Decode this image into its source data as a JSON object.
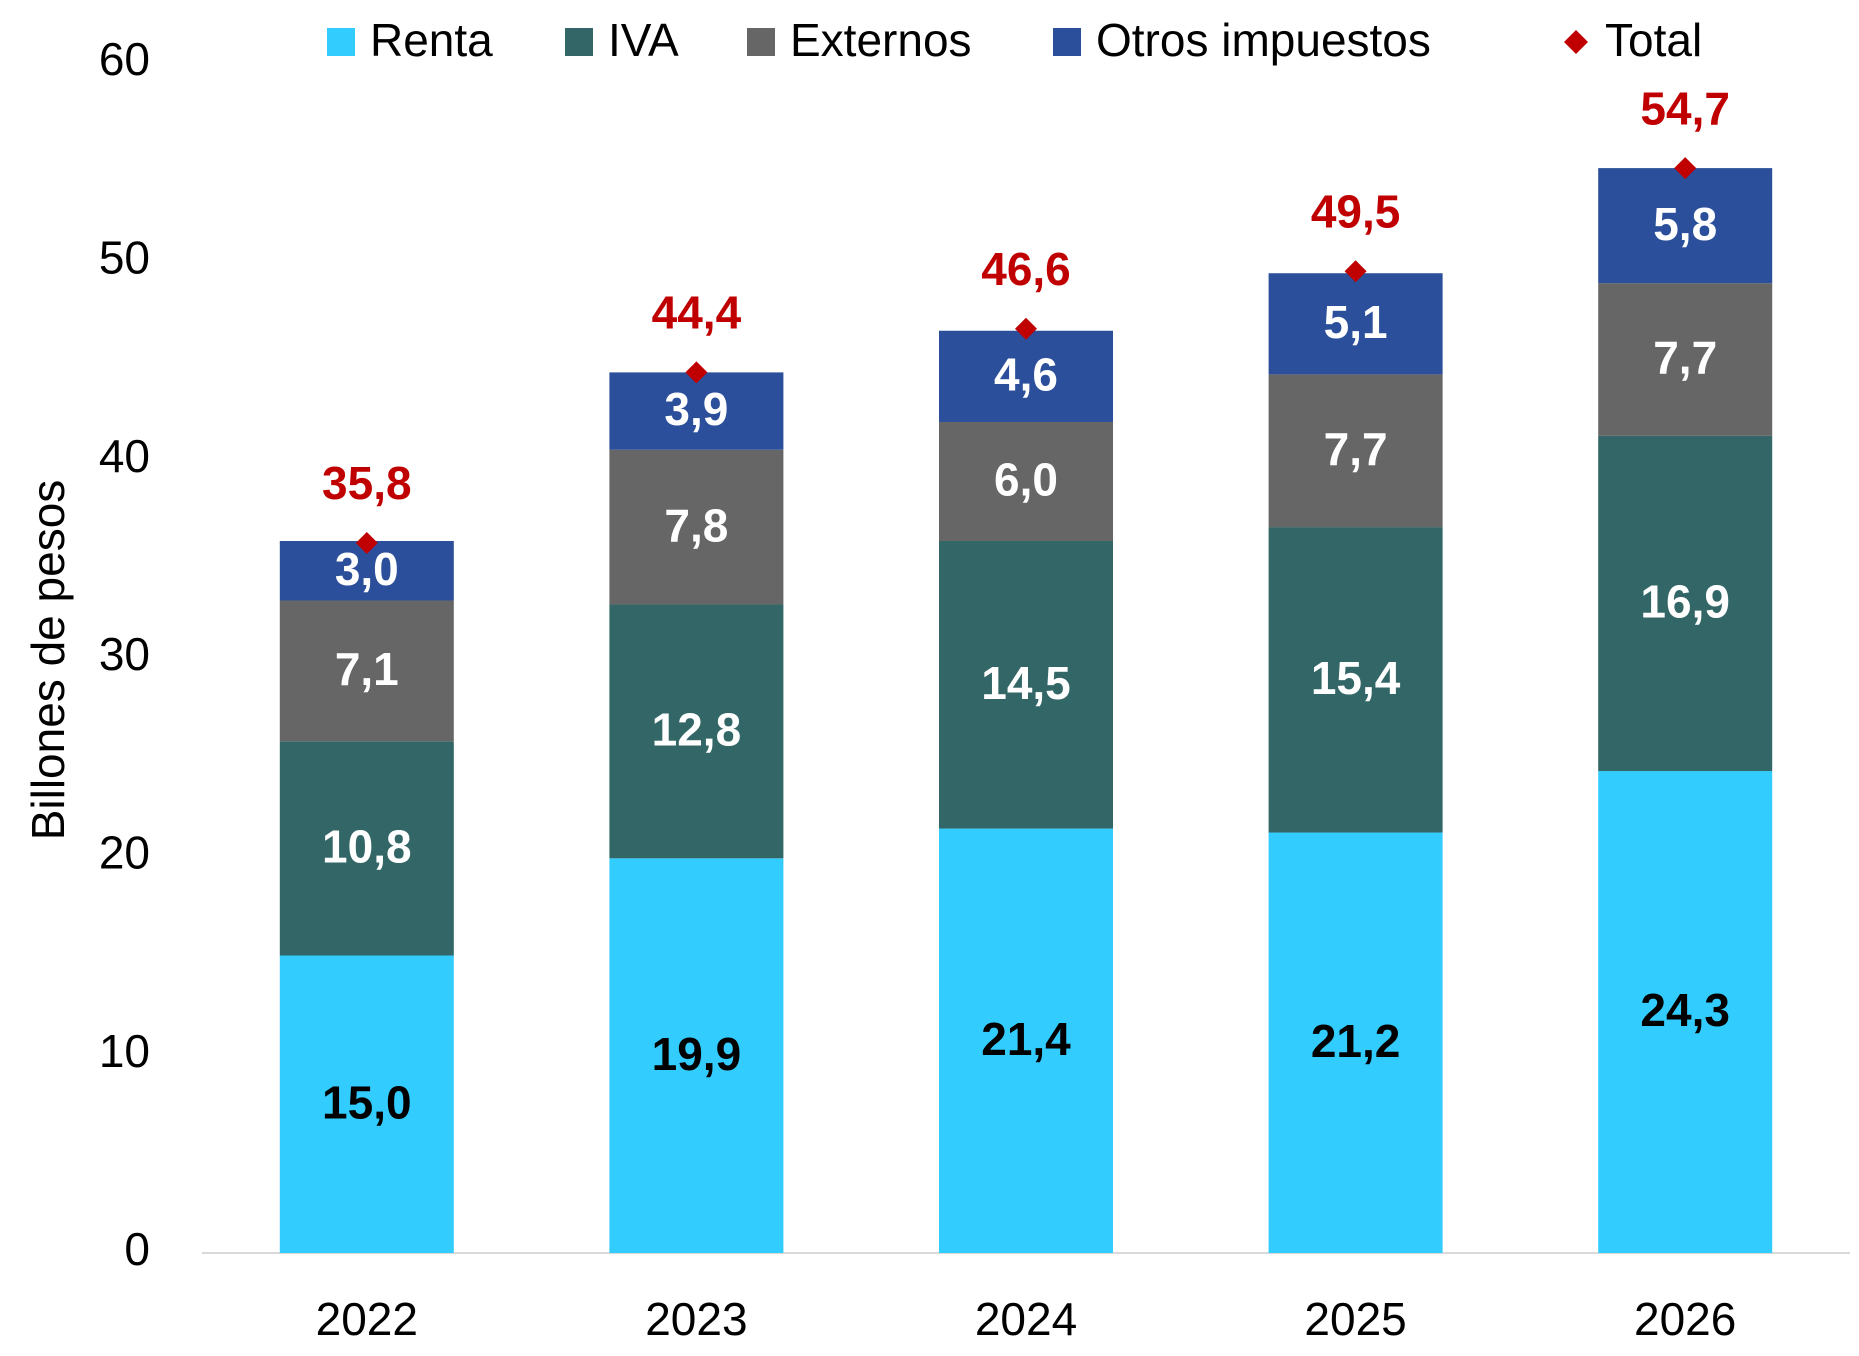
{
  "chart_data": {
    "type": "bar",
    "stacked": true,
    "y_label": "Billones de pesos",
    "categories": [
      "2022",
      "2023",
      "2024",
      "2025",
      "2026"
    ],
    "series": [
      {
        "name": "Renta",
        "color": "#33ccff",
        "label_color": "#000000",
        "values": [
          15.0,
          19.9,
          21.4,
          21.2,
          24.3
        ],
        "value_labels": [
          "15,0",
          "19,9",
          "21,4",
          "21,2",
          "24,3"
        ]
      },
      {
        "name": "IVA",
        "color": "#336666",
        "label_color": "#ffffff",
        "values": [
          10.8,
          12.8,
          14.5,
          15.4,
          16.9
        ],
        "value_labels": [
          "10,8",
          "12,8",
          "14,5",
          "15,4",
          "16,9"
        ]
      },
      {
        "name": "Externos",
        "color": "#666666",
        "label_color": "#ffffff",
        "values": [
          7.1,
          7.8,
          6.0,
          7.7,
          7.7
        ],
        "value_labels": [
          "7,1",
          "7,8",
          "6,0",
          "7,7",
          "7,7"
        ]
      },
      {
        "name": "Otros impuestos",
        "color": "#2b4f9a",
        "label_color": "#ffffff",
        "values": [
          3.0,
          3.9,
          4.6,
          5.1,
          5.8
        ],
        "value_labels": [
          "3,0",
          "3,9",
          "4,6",
          "5,1",
          "5,8"
        ]
      },
      {
        "name": "Total",
        "marker": "diamond",
        "color": "#c00000",
        "label_color": "#c00000",
        "values": [
          35.8,
          44.4,
          46.6,
          49.5,
          54.7
        ],
        "value_labels": [
          "35,8",
          "44,4",
          "46,6",
          "49,5",
          "54,7"
        ]
      }
    ],
    "ylim": [
      0,
      60
    ],
    "yticks": [
      0,
      10,
      20,
      30,
      40,
      50,
      60
    ],
    "grid": false
  }
}
